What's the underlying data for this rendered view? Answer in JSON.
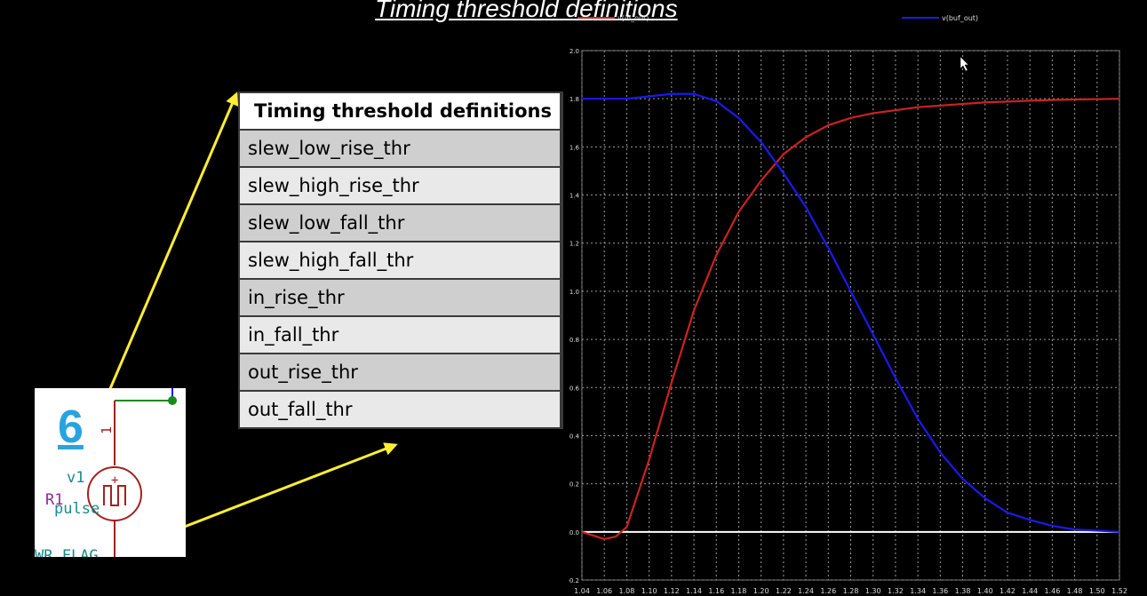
{
  "slide": {
    "title": "Timing threshold definitions"
  },
  "table": {
    "header": "Timing threshold definitions",
    "rows": [
      "slew_low_rise_thr",
      "slew_high_rise_thr",
      "slew_low_fall_thr",
      "slew_high_fall_thr",
      "in_rise_thr",
      "in_fall_thr",
      "out_rise_thr",
      "out_fall_thr"
    ]
  },
  "schematic": {
    "step_number": "6",
    "source_name": "v1",
    "source_type": "pulse",
    "resistor_label": "R1",
    "net_label": "1",
    "flag_label": "WR_FLAG",
    "plus_sign": "+"
  },
  "colors": {
    "arrow": "#ffee33",
    "grid": "#9a9a9a",
    "series_in": "#cc2222",
    "series_out": "#1a1aee",
    "step_number": "#29a3e0",
    "wire": "#1a8a1a",
    "source": "#a32020"
  },
  "chart_data": {
    "type": "line",
    "title": "",
    "xlabel": "",
    "ylabel": "",
    "xlim": [
      1.04,
      1.52
    ],
    "ylim": [
      -0.2,
      2.0
    ],
    "grid": true,
    "legend_position": "top",
    "x_ticks": [
      "1.04",
      "1.06",
      "1.08",
      "1.10",
      "1.12",
      "1.14",
      "1.16",
      "1.18",
      "1.20",
      "1.22",
      "1.24",
      "1.26",
      "1.28",
      "1.30",
      "1.32",
      "1.34",
      "1.36",
      "1.38",
      "1.40",
      "1.42",
      "1.44",
      "1.46",
      "1.48",
      "1.50",
      "1.52"
    ],
    "y_ticks": [
      "2.0",
      "1.8",
      "1.6",
      "1.4",
      "1.2",
      "1.0",
      "0.8",
      "0.6",
      "0.4",
      "0.2",
      "0.0",
      "-0.2"
    ],
    "series": [
      {
        "name": "v(in_out)",
        "color": "#cc2222",
        "x": [
          1.04,
          1.06,
          1.07,
          1.08,
          1.1,
          1.12,
          1.14,
          1.16,
          1.18,
          1.2,
          1.22,
          1.24,
          1.26,
          1.28,
          1.3,
          1.34,
          1.4,
          1.46,
          1.52
        ],
        "y": [
          0.0,
          -0.03,
          -0.02,
          0.02,
          0.3,
          0.62,
          0.92,
          1.15,
          1.33,
          1.46,
          1.57,
          1.64,
          1.69,
          1.72,
          1.74,
          1.765,
          1.785,
          1.795,
          1.8
        ]
      },
      {
        "name": "v(buf_out)",
        "color": "#1a1aee",
        "x": [
          1.04,
          1.08,
          1.1,
          1.12,
          1.14,
          1.16,
          1.18,
          1.2,
          1.22,
          1.24,
          1.26,
          1.28,
          1.3,
          1.32,
          1.34,
          1.36,
          1.38,
          1.4,
          1.42,
          1.44,
          1.46,
          1.48,
          1.52
        ],
        "y": [
          1.8,
          1.8,
          1.81,
          1.82,
          1.82,
          1.79,
          1.72,
          1.62,
          1.49,
          1.35,
          1.18,
          1.0,
          0.82,
          0.64,
          0.47,
          0.33,
          0.22,
          0.14,
          0.08,
          0.05,
          0.025,
          0.01,
          0.0
        ]
      }
    ]
  }
}
